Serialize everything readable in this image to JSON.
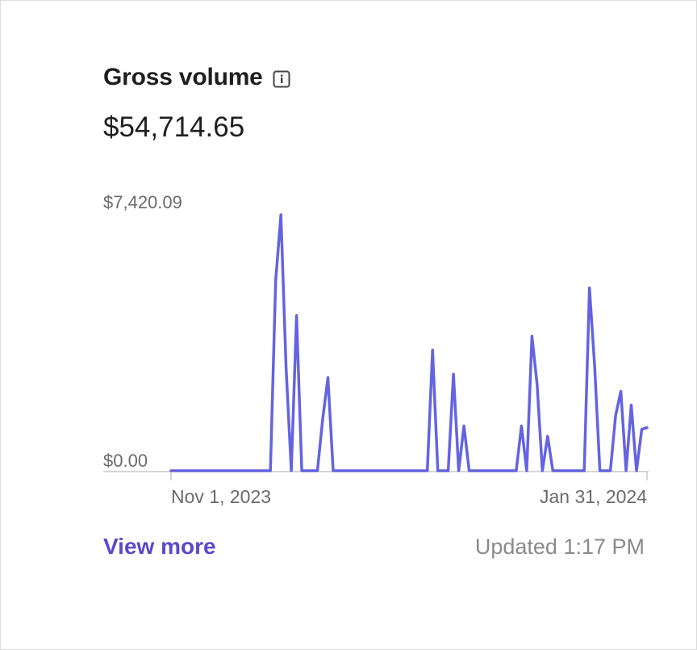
{
  "header": {
    "title": "Gross volume",
    "info_icon": "info-icon",
    "total": "$54,714.65"
  },
  "footer": {
    "view_more_label": "View more",
    "updated_text": "Updated 1:17 PM"
  },
  "colors": {
    "line": "#6464e0",
    "axis": "#c8c8c8",
    "tick_text": "#6b6b6b",
    "link": "#5a49c9"
  },
  "chart_data": {
    "type": "line",
    "ylim": [
      0,
      7420.09
    ],
    "y_tick_labels": [
      "$7,420.09",
      "$0.00"
    ],
    "x_tick_labels": [
      "Nov 1, 2023",
      "Jan 31, 2024"
    ],
    "x_range_days": [
      0,
      91
    ],
    "series": [
      {
        "x": [
          0,
          19,
          20,
          21,
          22,
          23,
          24,
          25,
          26,
          27,
          28,
          29,
          30,
          31,
          32,
          33,
          34,
          35,
          36,
          37,
          38,
          39,
          40,
          41,
          42,
          43,
          44,
          45,
          46,
          47,
          48,
          49,
          50,
          51,
          52,
          53,
          54,
          55,
          56,
          57,
          58,
          59,
          60,
          61,
          62,
          63,
          64,
          65,
          66,
          67,
          68,
          69,
          70,
          71,
          72,
          73,
          74,
          75,
          76,
          77,
          78,
          79,
          80,
          81,
          82,
          83,
          84,
          85,
          86,
          87,
          88,
          89,
          90,
          91
        ],
        "values": [
          0,
          0,
          5500,
          7420.09,
          3000,
          0,
          4500,
          0,
          0,
          0,
          0,
          1500,
          2700,
          0,
          0,
          0,
          0,
          0,
          0,
          0,
          0,
          0,
          0,
          0,
          0,
          0,
          0,
          0,
          0,
          0,
          0,
          0,
          3500,
          0,
          0,
          0,
          2800,
          0,
          1300,
          0,
          0,
          0,
          0,
          0,
          0,
          0,
          0,
          0,
          0,
          1300,
          0,
          3900,
          2500,
          0,
          1000,
          0,
          0,
          0,
          0,
          0,
          0,
          0,
          5300,
          3000,
          0,
          0,
          0,
          1600,
          2300,
          0,
          1900,
          0,
          1200,
          1250
        ]
      }
    ]
  }
}
